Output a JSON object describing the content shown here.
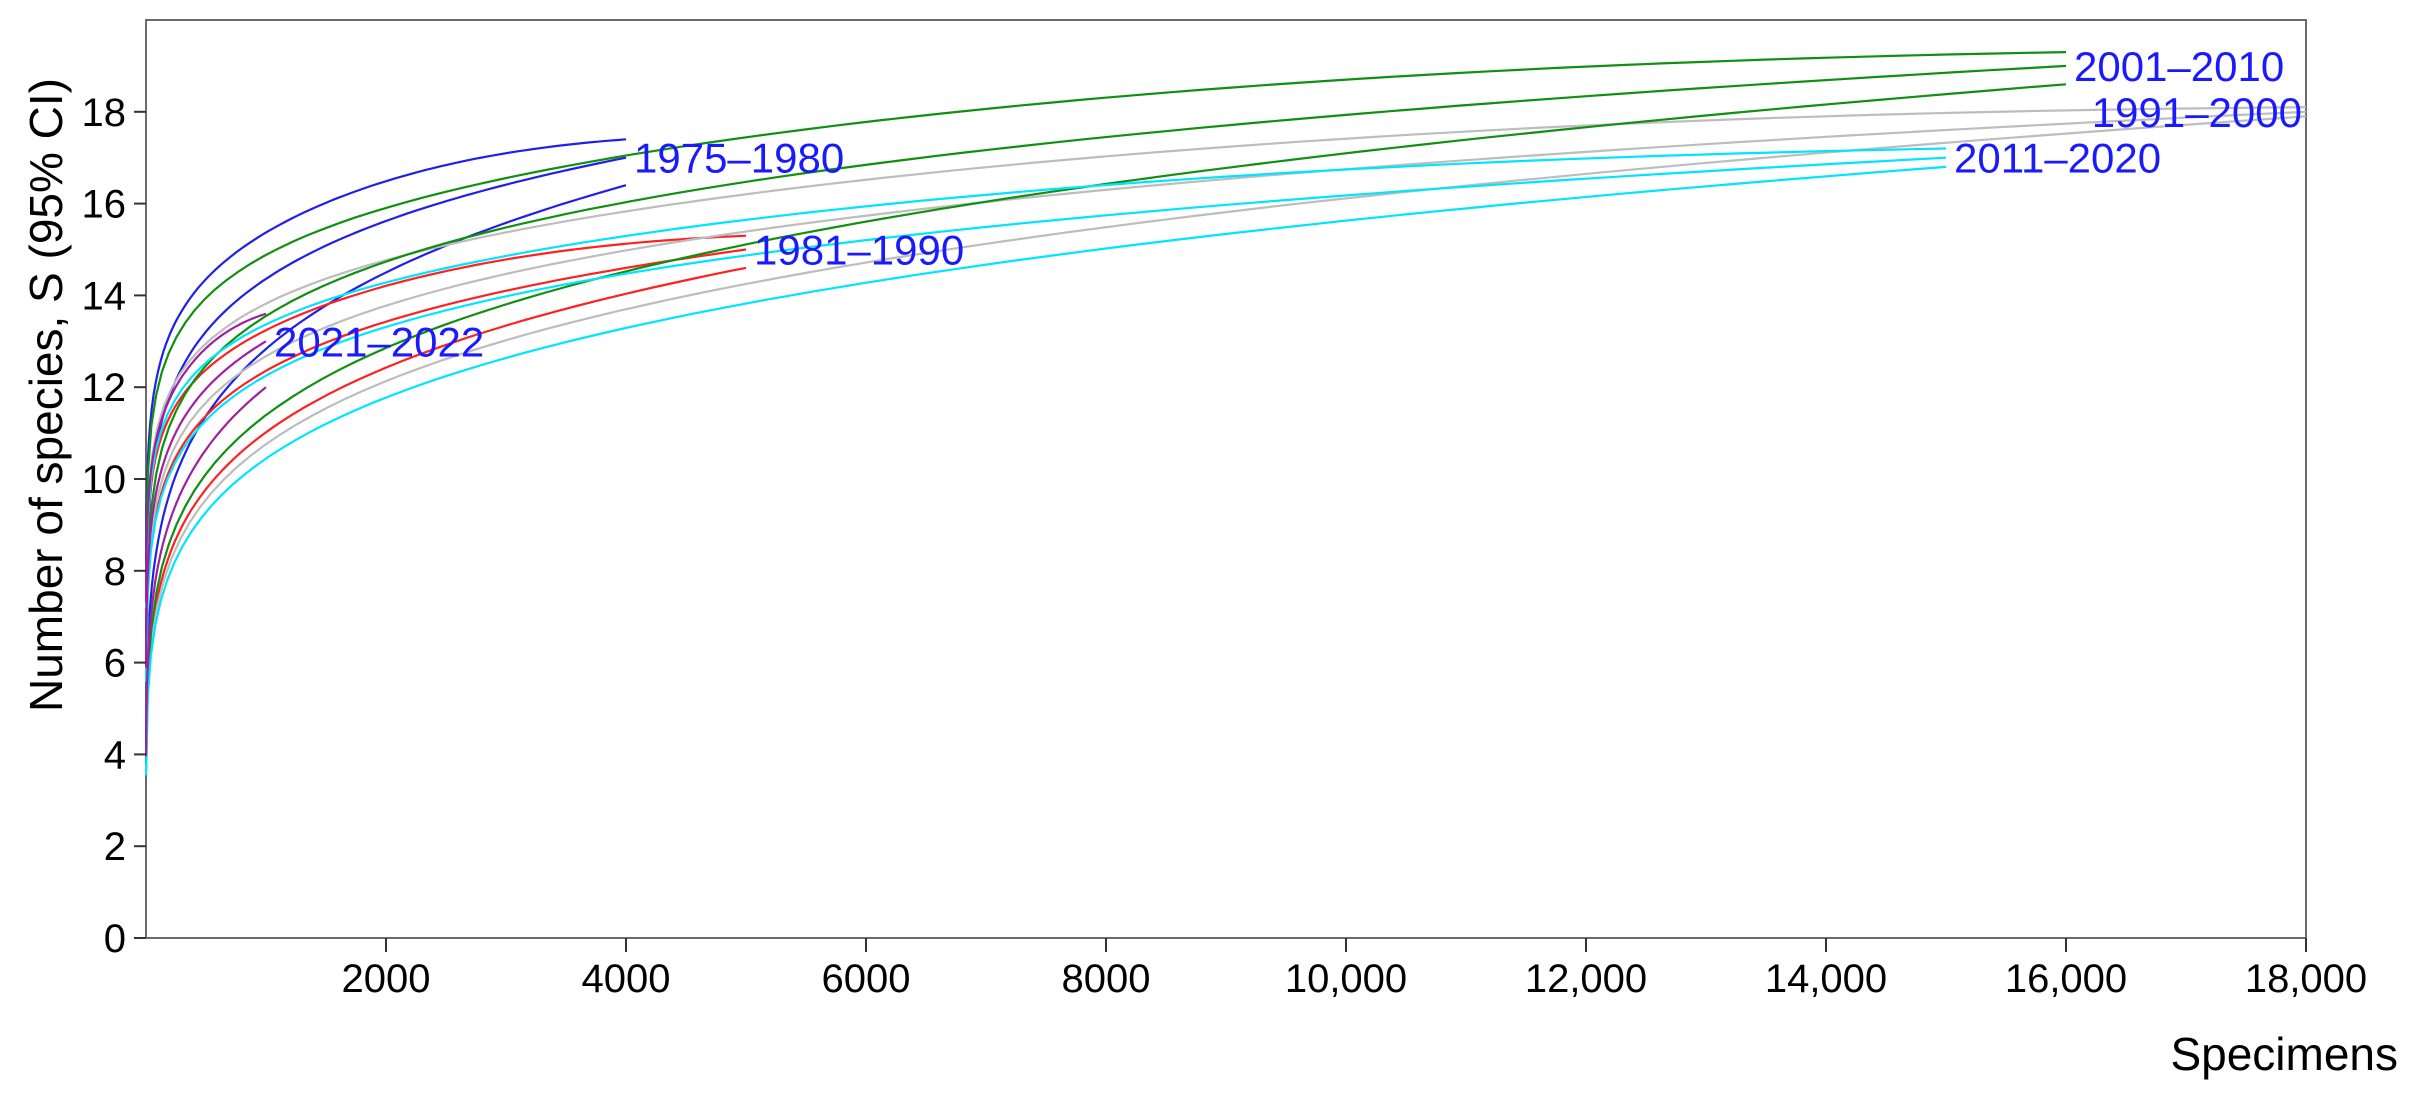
{
  "chart_data": {
    "type": "line",
    "title": "",
    "xlabel": "Specimens",
    "ylabel": "Number of species, S (95% CI)",
    "xlim": [
      0,
      18000
    ],
    "ylim": [
      0,
      20
    ],
    "x_ticks": [
      2000,
      4000,
      6000,
      8000,
      10000,
      12000,
      14000,
      16000,
      18000
    ],
    "x_tick_labels": [
      "2000",
      "4000",
      "6000",
      "8000",
      "10,000",
      "12,000",
      "14,000",
      "16,000",
      "18,000"
    ],
    "y_ticks": [
      0,
      2,
      4,
      6,
      8,
      10,
      12,
      14,
      16,
      18
    ],
    "y_tick_labels": [
      "0",
      "2",
      "4",
      "6",
      "8",
      "10",
      "12",
      "14",
      "16",
      "18"
    ],
    "grid": false,
    "legend": "none (series labelled directly at curve ends)",
    "label_color": "#1a1aff",
    "series": [
      {
        "name": "1975–1980",
        "color": "#2020e8",
        "n_max": 4000,
        "s_max": 17.0,
        "s_upper_end": 17.4,
        "s_upper_peak": 17.8,
        "s_lower_end": 16.4
      },
      {
        "name": "1981–1990",
        "color": "#ff2020",
        "n_max": 5000,
        "s_max": 15.0,
        "s_upper_end": 15.3,
        "s_upper_peak": 15.7,
        "s_lower_end": 14.6
      },
      {
        "name": "1991–2000",
        "color": "#bdbdbd",
        "n_max": 18000,
        "s_max": 18.0,
        "s_upper_end": 18.1,
        "s_upper_peak": 18.7,
        "s_lower_end": 17.9
      },
      {
        "name": "2001–2010",
        "color": "#109010",
        "n_max": 16000,
        "s_max": 19.0,
        "s_upper_end": 19.3,
        "s_upper_peak": 19.8,
        "s_lower_end": 18.6
      },
      {
        "name": "2011–2020",
        "color": "#00e5ff",
        "n_max": 15000,
        "s_max": 17.0,
        "s_upper_end": 17.2,
        "s_upper_peak": 17.6,
        "s_lower_end": 16.8
      },
      {
        "name": "2021–2022",
        "color": "#a020a0",
        "n_max": 1000,
        "s_max": 13.0,
        "s_upper_end": 13.6,
        "s_upper_peak": 13.8,
        "s_lower_end": 12.0
      }
    ]
  }
}
